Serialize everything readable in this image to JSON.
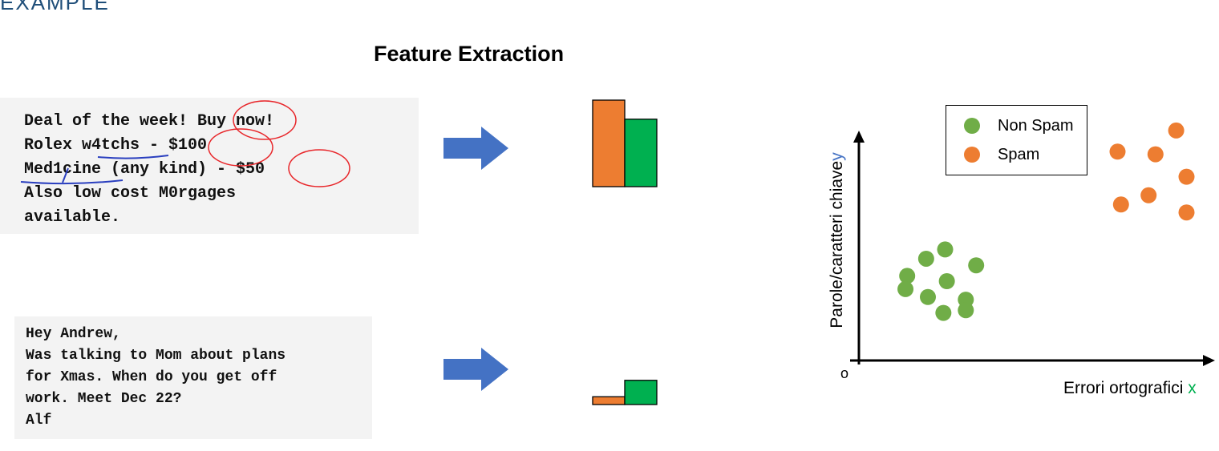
{
  "header": {
    "section_label": "EXAMPLE",
    "title": "Feature Extraction"
  },
  "emails": {
    "spam": {
      "lines": [
        "Deal of the week! Buy now!",
        "Rolex w4tchs - $100",
        "Med1cine (any kind) - $50",
        "Also low cost M0rgages",
        "available."
      ]
    },
    "ham": {
      "lines": [
        "Hey Andrew,",
        "Was talking to Mom about plans",
        "for Xmas. When do you get off",
        "work. Meet Dec 22?",
        "Alf"
      ]
    }
  },
  "colors": {
    "spam": "#ed7d31",
    "non_spam": "#70ad47",
    "bar_green": "#00b050",
    "arrow": "#4472c4",
    "circle_annotation": "#e8262a",
    "underline_annotation": "#2a3fbf"
  },
  "feature_bars": {
    "spam_email": {
      "spam_feature": 1.0,
      "non_spam_feature": 0.78
    },
    "ham_email": {
      "spam_feature": 0.09,
      "non_spam_feature": 0.28
    }
  },
  "chart_data": {
    "type": "scatter",
    "xlabel": "Errori ortografici",
    "xlabel_var": "x",
    "ylabel": "Parole/caratteri chiave",
    "ylabel_var": "y",
    "origin_label": "o",
    "legend_placement": "top-right",
    "grid": false,
    "series": [
      {
        "name": "Non Spam",
        "color": "#70ad47",
        "points": [
          [
            1.4,
            3.2
          ],
          [
            2.0,
            2.4
          ],
          [
            2.5,
            4.2
          ],
          [
            2.55,
            3.0
          ],
          [
            3.1,
            2.3
          ],
          [
            3.4,
            3.6
          ],
          [
            1.95,
            3.85
          ],
          [
            1.35,
            2.7
          ],
          [
            2.45,
            1.8
          ],
          [
            3.1,
            1.9
          ]
        ]
      },
      {
        "name": "Spam",
        "color": "#ed7d31",
        "points": [
          [
            7.5,
            7.9
          ],
          [
            8.6,
            7.8
          ],
          [
            9.2,
            8.7
          ],
          [
            9.5,
            6.95
          ],
          [
            8.4,
            6.25
          ],
          [
            7.6,
            5.9
          ],
          [
            9.5,
            5.6
          ]
        ]
      }
    ],
    "xlim": [
      0,
      10
    ],
    "ylim": [
      0,
      10
    ]
  }
}
